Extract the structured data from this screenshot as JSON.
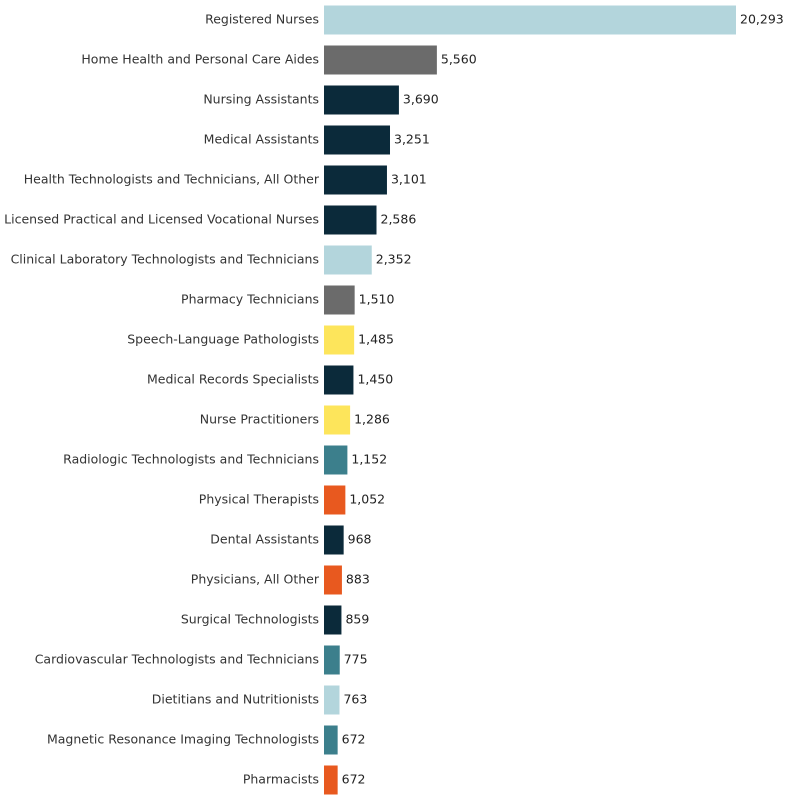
{
  "chart_data": {
    "type": "bar",
    "orientation": "horizontal",
    "title": "",
    "xlabel": "",
    "ylabel": "",
    "grid": false,
    "categories": [
      "Registered Nurses",
      "Home Health and Personal Care Aides",
      "Nursing Assistants",
      "Medical Assistants",
      "Health Technologists and Technicians, All Other",
      "Licensed Practical and Licensed Vocational Nurses",
      "Clinical Laboratory Technologists and Technicians",
      "Pharmacy Technicians",
      "Speech-Language Pathologists",
      "Medical Records Specialists",
      "Nurse Practitioners",
      "Radiologic Technologists and Technicians",
      "Physical Therapists",
      "Dental Assistants",
      "Physicians, All Other",
      "Surgical Technologists",
      "Cardiovascular Technologists and Technicians",
      "Dietitians and Nutritionists",
      "Magnetic Resonance Imaging Technologists",
      "Pharmacists"
    ],
    "values": [
      20293,
      5560,
      3690,
      3251,
      3101,
      2586,
      2352,
      1510,
      1485,
      1450,
      1286,
      1152,
      1052,
      968,
      883,
      859,
      775,
      763,
      672,
      672
    ],
    "value_labels": [
      "20,293",
      "5,560",
      "3,690",
      "3,251",
      "3,101",
      "2,586",
      "2,352",
      "1,510",
      "1,485",
      "1,450",
      "1,286",
      "1,152",
      "1,052",
      "968",
      "883",
      "859",
      "775",
      "763",
      "672",
      "672"
    ],
    "colors": [
      "#b3d5dc",
      "#6b6b6b",
      "#0b2a3a",
      "#0b2a3a",
      "#0b2a3a",
      "#0b2a3a",
      "#b3d5dc",
      "#6b6b6b",
      "#fde55b",
      "#0b2a3a",
      "#fde55b",
      "#3c7f8c",
      "#e8591f",
      "#0b2a3a",
      "#e8591f",
      "#0b2a3a",
      "#3c7f8c",
      "#b3d5dc",
      "#3c7f8c",
      "#e8591f"
    ]
  }
}
